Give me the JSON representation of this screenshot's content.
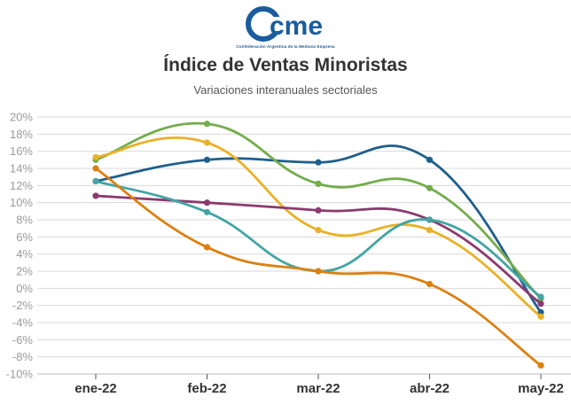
{
  "header": {
    "logo_text": "cme",
    "logo_tagline": "Confederación Argentina de la Mediana Empresa",
    "title": "Índice de Ventas Minoristas",
    "subtitle": "Variaciones interanuales sectoriales"
  },
  "colors": {
    "logo": "#1a5c9e",
    "grid": "#d9d9d9",
    "axis": "#bdbdbd"
  },
  "chart_data": {
    "type": "line",
    "title": "Índice de Ventas Minoristas",
    "subtitle": "Variaciones interanuales sectoriales",
    "categories": [
      "ene-22",
      "feb-22",
      "mar-22",
      "abr-22",
      "may-22"
    ],
    "ylim": [
      -10,
      20
    ],
    "yticks": [
      20,
      18,
      16,
      14,
      12,
      10,
      8,
      6,
      4,
      2,
      0,
      -2,
      -4,
      -6,
      -8,
      -10
    ],
    "ytick_labels": [
      "20%",
      "18%",
      "16%",
      "14%",
      "12%",
      "10%",
      "8%",
      "6%",
      "4%",
      "2%",
      "0%",
      "-2%",
      "-4%",
      "-6%",
      "-8%",
      "-10%"
    ],
    "grid": true,
    "legend": "none",
    "series": [
      {
        "color": "#1f5f8b",
        "values": [
          12.5,
          15.0,
          14.7,
          15.0,
          -2.8
        ]
      },
      {
        "color": "#74ad4b",
        "values": [
          15.0,
          19.2,
          12.2,
          11.7,
          -1.2
        ]
      },
      {
        "color": "#e9b126",
        "values": [
          15.3,
          17.0,
          6.8,
          6.8,
          -3.3
        ]
      },
      {
        "color": "#8b3a6f",
        "values": [
          10.8,
          10.0,
          9.1,
          8.0,
          -1.8
        ]
      },
      {
        "color": "#43a5a3",
        "values": [
          12.5,
          8.9,
          2.0,
          8.0,
          -1.0
        ]
      },
      {
        "color": "#dc8011",
        "values": [
          14.0,
          4.8,
          2.0,
          0.5,
          -9.0
        ]
      }
    ]
  }
}
